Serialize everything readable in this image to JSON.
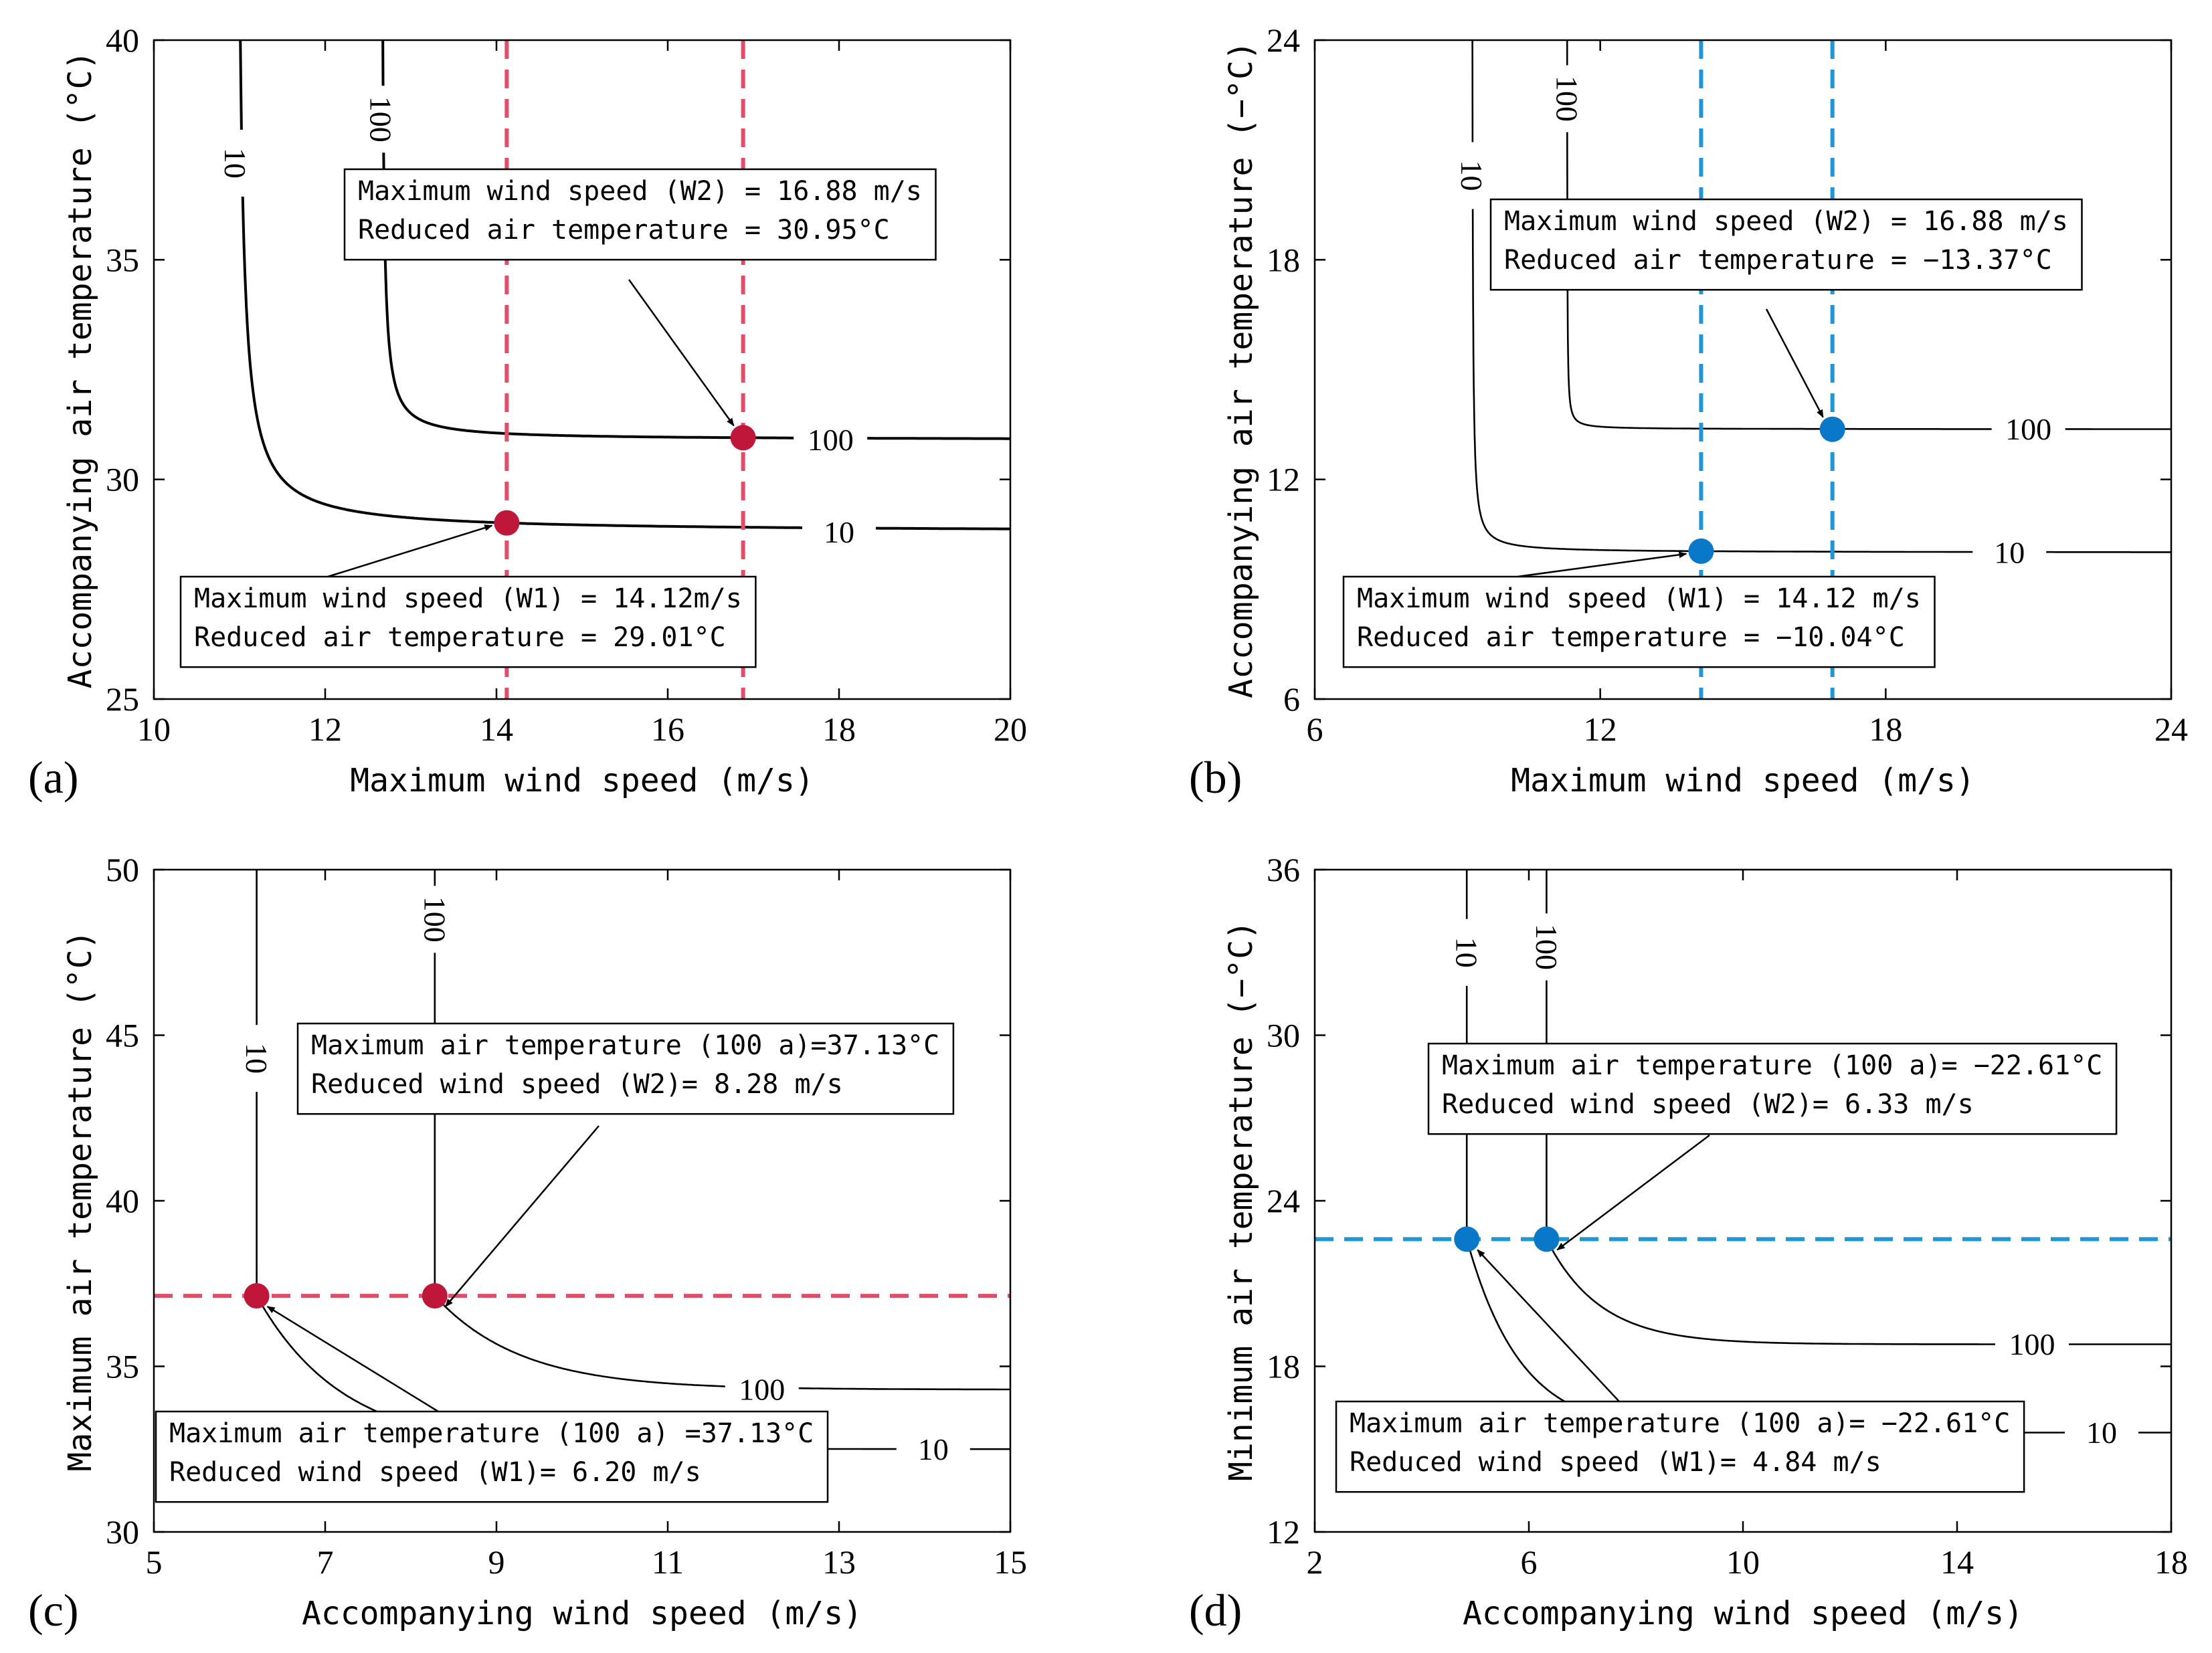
{
  "colors": {
    "red": "#c0163a",
    "red_dash": "#e34d6a",
    "blue": "#0a78c8",
    "blue_dash": "#2196d6",
    "curve": "#000000"
  },
  "chart_data": [
    {
      "type": "line",
      "panel": "(a)",
      "xlabel": "Maximum wind speed (m/s)",
      "ylabel": "Accompanying air temperature (°C)",
      "xlim": [
        10,
        20
      ],
      "ylim": [
        25,
        40
      ],
      "xticks": [
        "10",
        "12",
        "14",
        "16",
        "18",
        "20"
      ],
      "yticks": [
        "25",
        "30",
        "35",
        "40"
      ],
      "contours": [
        {
          "label": "10",
          "asymptote_x": 10.95,
          "asymptote_y": 28.8,
          "top_label_y": 37.2,
          "right_label_x": 18.0
        },
        {
          "label": "100",
          "asymptote_x": 12.65,
          "asymptote_y": 30.9,
          "top_label_y": 38.2,
          "right_label_x": 17.9
        }
      ],
      "guide": {
        "orientation": "vertical",
        "values": [
          14.12,
          16.88
        ],
        "color": "red_dash"
      },
      "points": [
        {
          "x": 14.12,
          "y": 29.01
        },
        {
          "x": 16.88,
          "y": 30.95
        }
      ],
      "point_color": "red",
      "annotations": [
        {
          "lines": [
            "Maximum wind speed (W2) = 16.88 m/s",
            "Reduced air temperature = 30.95°C"
          ]
        },
        {
          "lines": [
            "Maximum wind speed (W1) = 14.12m/s",
            "Reduced air temperature = 29.01°C"
          ]
        }
      ]
    },
    {
      "type": "line",
      "panel": "(b)",
      "xlabel": "Maximum wind speed (m/s)",
      "ylabel": "Accompanying air temperature (−°C)",
      "xlim": [
        6,
        24
      ],
      "ylim": [
        6,
        24
      ],
      "xticks": [
        "6",
        "12",
        "18",
        "24"
      ],
      "yticks": [
        "6",
        "12",
        "18",
        "24"
      ],
      "contours": [
        {
          "label": "10",
          "asymptote_x": 9.3,
          "asymptote_y": 10.0,
          "top_label_y": 20.3,
          "right_label_x": 20.6
        },
        {
          "label": "100",
          "asymptote_x": 11.3,
          "asymptote_y": 13.37,
          "top_label_y": 22.4,
          "right_label_x": 21.0
        }
      ],
      "guide": {
        "orientation": "vertical",
        "values": [
          14.12,
          16.88
        ],
        "color": "blue_dash"
      },
      "points": [
        {
          "x": 14.12,
          "y": 10.04
        },
        {
          "x": 16.88,
          "y": 13.37
        }
      ],
      "point_color": "blue",
      "annotations": [
        {
          "lines": [
            "Maximum wind speed (W2) = 16.88 m/s",
            "Reduced air temperature = −13.37°C"
          ]
        },
        {
          "lines": [
            "Maximum wind speed (W1) = 14.12 m/s",
            "Reduced air temperature = −10.04°C"
          ]
        }
      ]
    },
    {
      "type": "line",
      "panel": "(c)",
      "xlabel": "Accompanying wind speed (m/s)",
      "ylabel": "Maximum air temperature (°C)",
      "xlim": [
        5,
        15
      ],
      "ylim": [
        30,
        50
      ],
      "xticks": [
        "5",
        "7",
        "9",
        "11",
        "13",
        "15"
      ],
      "yticks": [
        "30",
        "35",
        "40",
        "45",
        "50"
      ],
      "contours": [
        {
          "label": "10",
          "top_x": 6.2,
          "asymptote_y": 32.5,
          "top_label_y": 44.3,
          "right_label_x": 14.1
        },
        {
          "label": "100",
          "top_x": 8.28,
          "asymptote_y": 34.3,
          "top_label_y": 48.5,
          "right_label_x": 12.1
        }
      ],
      "guide": {
        "orientation": "horizontal",
        "values": [
          37.13
        ],
        "color": "red_dash"
      },
      "points": [
        {
          "x": 6.2,
          "y": 37.13
        },
        {
          "x": 8.28,
          "y": 37.13
        }
      ],
      "point_color": "red",
      "annotations": [
        {
          "lines": [
            "Maximum air temperature (100 a)=37.13°C",
            "Reduced wind speed (W2)= 8.28 m/s"
          ]
        },
        {
          "lines": [
            "Maximum air temperature (100 a) =37.13°C",
            "Reduced wind speed (W1)= 6.20 m/s"
          ]
        }
      ]
    },
    {
      "type": "line",
      "panel": "(d)",
      "xlabel": "Accompanying  wind speed (m/s)",
      "ylabel": "Minimum air temperature (−°C)",
      "xlim": [
        2,
        18
      ],
      "ylim": [
        12,
        36
      ],
      "xticks": [
        "2",
        "6",
        "10",
        "14",
        "18"
      ],
      "yticks": [
        "12",
        "18",
        "24",
        "30",
        "36"
      ],
      "contours": [
        {
          "label": "10",
          "top_x": 4.84,
          "asymptote_y": 15.6,
          "top_label_y": 33.0,
          "right_label_x": 16.7
        },
        {
          "label": "100",
          "top_x": 6.33,
          "asymptote_y": 18.8,
          "top_label_y": 33.2,
          "right_label_x": 15.4
        }
      ],
      "guide": {
        "orientation": "horizontal",
        "values": [
          22.61
        ],
        "color": "blue_dash"
      },
      "points": [
        {
          "x": 4.84,
          "y": 22.61
        },
        {
          "x": 6.33,
          "y": 22.61
        }
      ],
      "point_color": "blue",
      "annotations": [
        {
          "lines": [
            "Maximum air temperature (100 a)= −22.61°C",
            "Reduced wind speed (W2)= 6.33 m/s"
          ]
        },
        {
          "lines": [
            "Maximum air temperature (100 a)= −22.61°C",
            "Reduced wind speed (W1)= 4.84 m/s"
          ]
        }
      ]
    }
  ]
}
